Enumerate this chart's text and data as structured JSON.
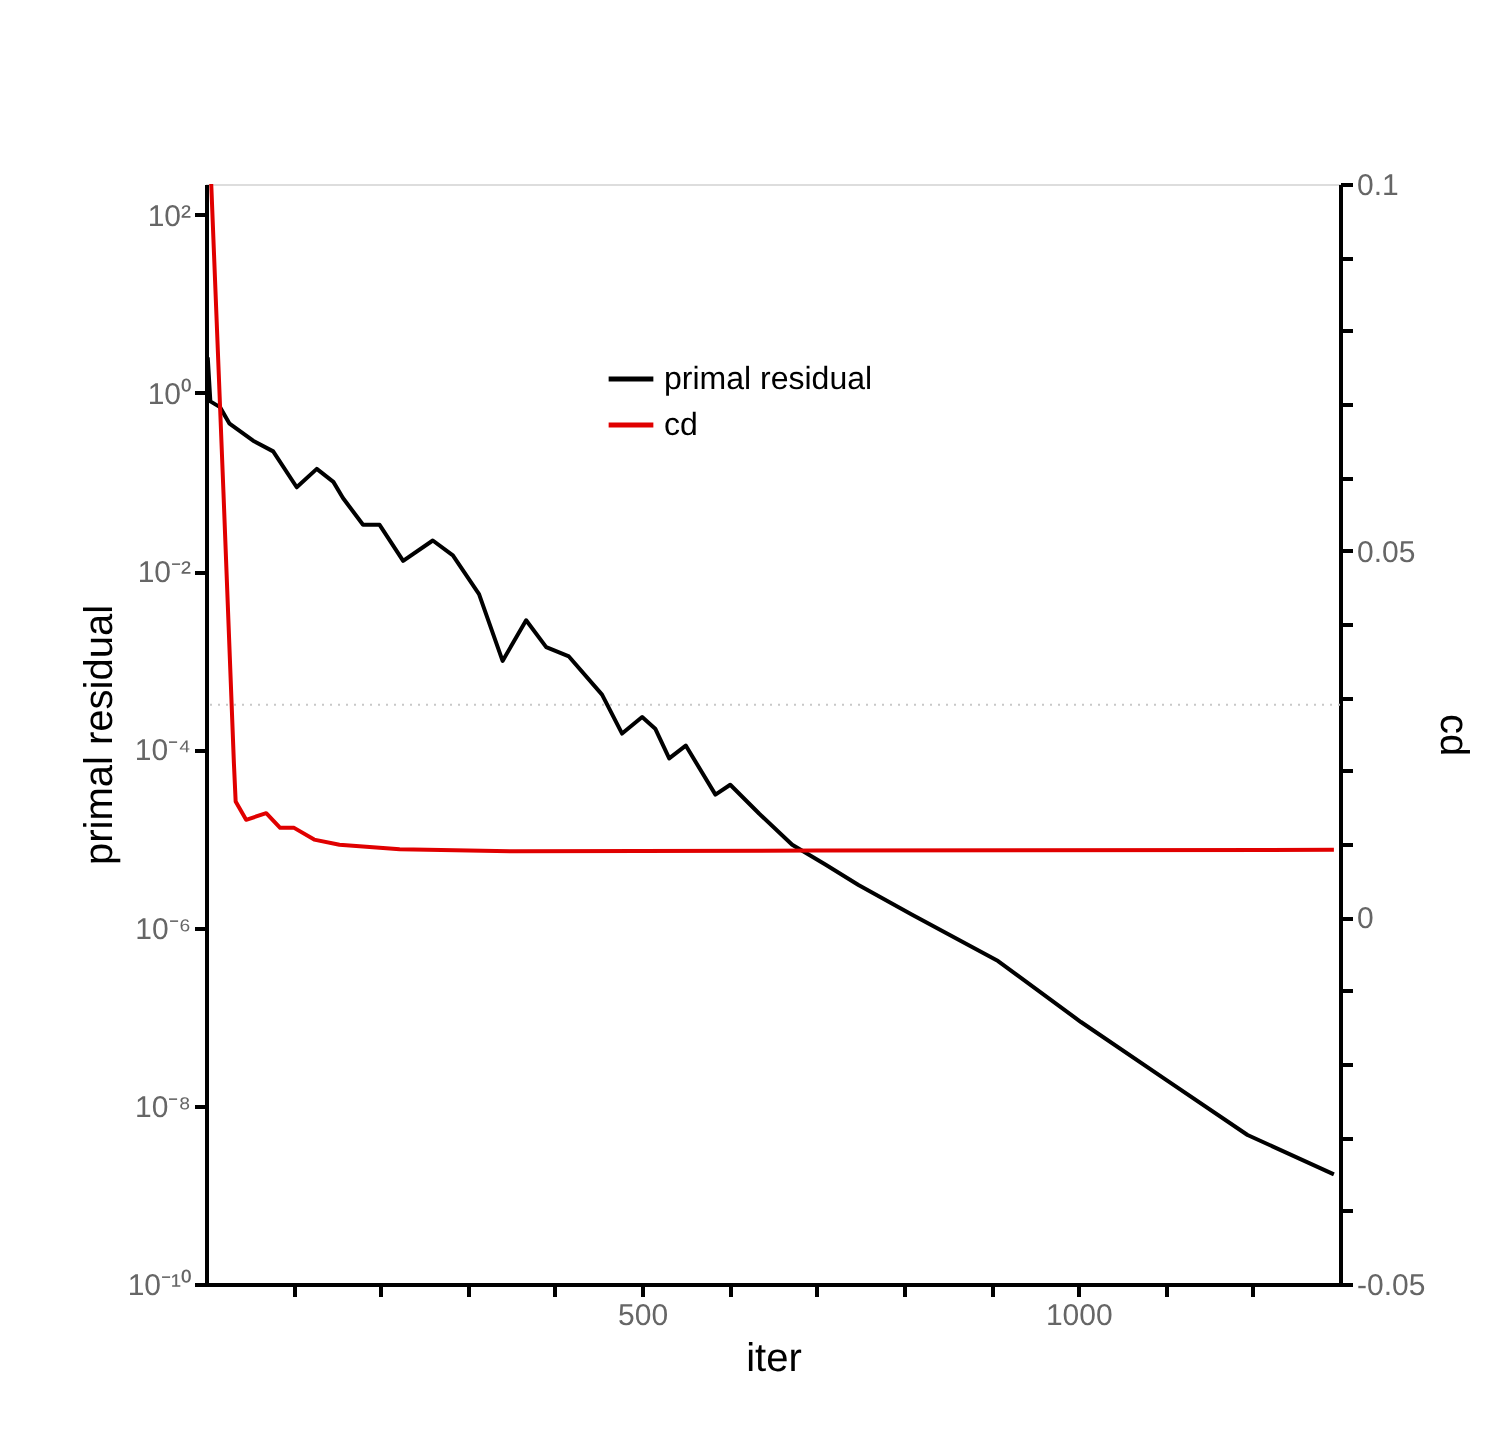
{
  "chart_data": {
    "type": "line",
    "xlabel": "iter",
    "ylabel": "primal residual",
    "y2label": "cd",
    "log": "y",
    "grid": false,
    "legend": "top",
    "line_style": "solid",
    "marker": "none",
    "xlim": [
      0,
      1300
    ],
    "xticks": [
      {
        "value": 100,
        "label": null
      },
      {
        "value": 200,
        "label": null
      },
      {
        "value": 300,
        "label": null
      },
      {
        "value": 400,
        "label": null
      },
      500,
      {
        "value": 600,
        "label": null
      },
      {
        "value": 700,
        "label": null
      },
      {
        "value": 800,
        "label": null
      },
      {
        "value": 900,
        "label": null
      },
      1000,
      {
        "value": 1100,
        "label": null
      },
      {
        "value": 1200,
        "label": null
      }
    ],
    "ylim": [
      1e-10,
      220
    ],
    "yticks": [
      {
        "value": 1e-10,
        "label": "10⁻¹⁰"
      },
      {
        "value": 1e-08,
        "label": "10⁻⁸"
      },
      {
        "value": 1e-06,
        "label": "10⁻⁶"
      },
      {
        "value": 0.0001,
        "label": "10⁻⁴"
      },
      {
        "value": 0.01,
        "label": "10⁻²"
      },
      {
        "value": 1,
        "label": "10⁰"
      },
      {
        "value": 100,
        "label": "10²"
      }
    ],
    "y2lim": [
      -0.05,
      0.1
    ],
    "y2ticks": [
      -0.05,
      {
        "value": -0.04,
        "label": null
      },
      {
        "value": -0.03,
        "label": null
      },
      {
        "value": -0.02,
        "label": null
      },
      {
        "value": -0.01,
        "label": null
      },
      0,
      {
        "value": 0.01,
        "label": null
      },
      {
        "value": 0.02,
        "label": null
      },
      {
        "value": 0.03,
        "label": null
      },
      {
        "value": 0.04,
        "label": null
      },
      0.05,
      {
        "value": 0.06,
        "label": null
      },
      {
        "value": 0.07,
        "label": null
      },
      {
        "value": 0.08,
        "label": null
      },
      {
        "value": 0.09,
        "label": null
      },
      0.1
    ],
    "ref_lines": [
      {
        "axis": "y2",
        "value": 0.029,
        "label": null,
        "color": "#c8c8c8",
        "line_style": "dotted"
      }
    ],
    "series": [
      {
        "name": "primal residual",
        "color": "#000000",
        "axis": "y",
        "x": [
          2,
          5,
          16,
          27,
          54,
          77,
          104,
          127,
          146,
          157,
          180,
          199,
          226,
          260,
          283,
          313,
          340,
          367,
          390,
          416,
          454,
          477,
          500,
          515,
          531,
          550,
          584,
          601,
          634,
          672,
          710,
          748,
          809,
          908,
          1003,
          1099,
          1194,
          1293
        ],
        "values": [
          2.5,
          0.8,
          0.69,
          0.45,
          0.29,
          0.22,
          0.087,
          0.14,
          0.1,
          0.066,
          0.033,
          0.033,
          0.013,
          0.022,
          0.015,
          0.0055,
          0.00098,
          0.0028,
          0.0014,
          0.0011,
          0.00041,
          0.00015,
          0.00023,
          0.00017,
          7.9e-05,
          0.00011,
          3.1e-05,
          4e-05,
          1.9e-05,
          8.5e-06,
          5.1e-06,
          3e-06,
          1.4e-06,
          4.2e-07,
          8.7e-08,
          2e-08,
          4.7e-09,
          1.7e-09
        ]
      },
      {
        "name": "cd",
        "color": "#e00000",
        "axis": "y2",
        "x": [
          6,
          20,
          32,
          34,
          46,
          69,
          85,
          101,
          124,
          153,
          222,
          355,
          700,
          1293
        ],
        "values": [
          0.1,
          0.058,
          0.021,
          0.0158,
          0.0133,
          0.0142,
          0.0122,
          0.0122,
          0.0106,
          0.0099,
          0.0093,
          0.009,
          0.0091,
          0.0092
        ]
      }
    ]
  }
}
